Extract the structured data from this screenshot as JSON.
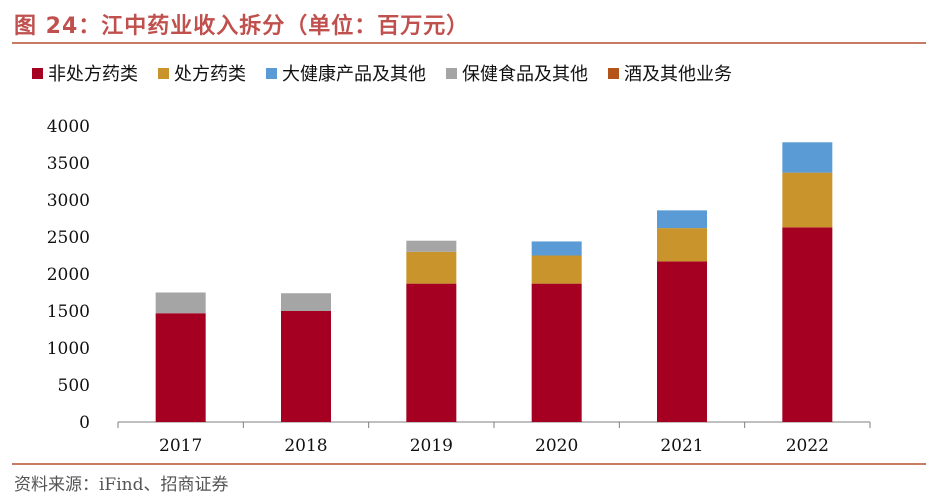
{
  "title": "图 24：江中药业收入拆分（单位：百万元）",
  "source": "资料来源：iFind、招商证券",
  "chart_data": {
    "type": "bar",
    "stacked": true,
    "categories": [
      "2017",
      "2018",
      "2019",
      "2020",
      "2021",
      "2022"
    ],
    "series": [
      {
        "name": "非处方药类",
        "color": "#a50021",
        "values": [
          1470,
          1500,
          1870,
          1870,
          2170,
          2630
        ]
      },
      {
        "name": "处方药类",
        "color": "#c9942c",
        "values": [
          0,
          0,
          430,
          380,
          450,
          740
        ]
      },
      {
        "name": "大健康产品及其他",
        "color": "#5b9bd5",
        "values": [
          0,
          0,
          0,
          190,
          240,
          410
        ]
      },
      {
        "name": "保健食品及其他",
        "color": "#a5a5a5",
        "values": [
          280,
          240,
          150,
          0,
          0,
          0
        ]
      },
      {
        "name": "酒及其他业务",
        "color": "#b5541a",
        "values": [
          0,
          0,
          0,
          0,
          0,
          0
        ]
      }
    ],
    "ylim": [
      0,
      4000
    ],
    "yticks": [
      0,
      500,
      1000,
      1500,
      2000,
      2500,
      3000,
      3500,
      4000
    ],
    "legend_position": "top",
    "grid": false,
    "xlabel": "",
    "ylabel": ""
  }
}
